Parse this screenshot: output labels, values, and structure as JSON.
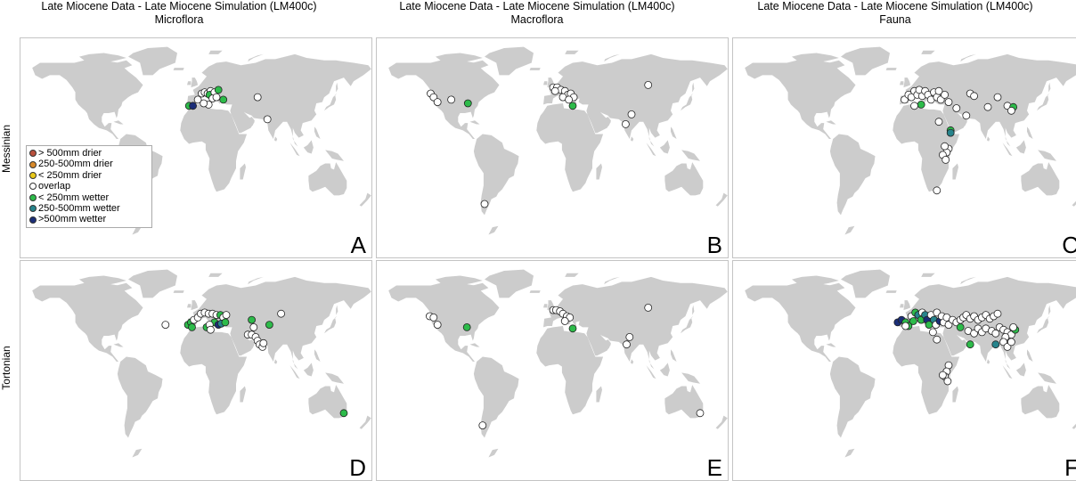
{
  "figure": {
    "columns": [
      {
        "title1": "Late Miocene Data - Late Miocene Simulation (LM400c)",
        "title2": "Microflora"
      },
      {
        "title1": "Late Miocene Data - Late Miocene Simulation (LM400c)",
        "title2": "Macroflora"
      },
      {
        "title1": "Late Miocene Data - Late Miocene Simulation (LM400c)",
        "title2": "Fauna"
      }
    ],
    "rows": [
      "Messinian",
      "Tortonian"
    ],
    "panel_letters": [
      "A",
      "B",
      "C",
      "D",
      "E",
      "F"
    ],
    "legend": [
      {
        "label": "> 500mm drier",
        "color": "#b8503c"
      },
      {
        "label": "250-500mm drier",
        "color": "#d8892a"
      },
      {
        "label": "< 250mm drier",
        "color": "#e8c81a"
      },
      {
        "label": "overlap",
        "color": "#ffffff"
      },
      {
        "label": "< 250mm wetter",
        "color": "#2dbb4a"
      },
      {
        "label": "250-500mm wetter",
        "color": "#27848c"
      },
      {
        "label": ">500mm wetter",
        "color": "#1b2e78"
      }
    ],
    "land_color": "#cccccc",
    "panels": [
      {
        "id": "A",
        "points": [
          {
            "lon": -8,
            "lat": 35,
            "cat": 4
          },
          {
            "lon": -4,
            "lat": 35,
            "cat": 6
          },
          {
            "lon": 1,
            "lat": 40,
            "cat": 3
          },
          {
            "lon": 5,
            "lat": 45,
            "cat": 3
          },
          {
            "lon": 8,
            "lat": 46,
            "cat": 3
          },
          {
            "lon": 11,
            "lat": 45,
            "cat": 3
          },
          {
            "lon": 14,
            "lat": 47,
            "cat": 3
          },
          {
            "lon": 13,
            "lat": 44,
            "cat": 4
          },
          {
            "lon": 18,
            "lat": 46,
            "cat": 3
          },
          {
            "lon": 22,
            "lat": 48,
            "cat": 4
          },
          {
            "lon": 16,
            "lat": 41,
            "cat": 3
          },
          {
            "lon": 27,
            "lat": 40,
            "cat": 4
          },
          {
            "lon": 12,
            "lat": 36,
            "cat": 3
          },
          {
            "lon": 7,
            "lat": 37,
            "cat": 3
          },
          {
            "lon": 20,
            "lat": 42,
            "cat": 3
          },
          {
            "lon": 62,
            "lat": 42,
            "cat": 3
          },
          {
            "lon": 72,
            "lat": 24,
            "cat": 3
          }
        ]
      },
      {
        "id": "B",
        "points": [
          {
            "lon": -125,
            "lat": 45,
            "cat": 3
          },
          {
            "lon": -122,
            "lat": 42,
            "cat": 3
          },
          {
            "lon": -118,
            "lat": 38,
            "cat": 3
          },
          {
            "lon": -104,
            "lat": 40,
            "cat": 3
          },
          {
            "lon": -87,
            "lat": 37,
            "cat": 4
          },
          {
            "lon": 0,
            "lat": 50,
            "cat": 3
          },
          {
            "lon": 4,
            "lat": 50,
            "cat": 3
          },
          {
            "lon": 8,
            "lat": 48,
            "cat": 3
          },
          {
            "lon": 12,
            "lat": 47,
            "cat": 3
          },
          {
            "lon": 2,
            "lat": 47,
            "cat": 3
          },
          {
            "lon": 15,
            "lat": 44,
            "cat": 3
          },
          {
            "lon": 18,
            "lat": 45,
            "cat": 3
          },
          {
            "lon": 21,
            "lat": 42,
            "cat": 3
          },
          {
            "lon": 10,
            "lat": 42,
            "cat": 3
          },
          {
            "lon": 16,
            "lat": 40,
            "cat": 3
          },
          {
            "lon": 20,
            "lat": 35,
            "cat": 4
          },
          {
            "lon": 97,
            "lat": 52,
            "cat": 3
          },
          {
            "lon": 80,
            "lat": 28,
            "cat": 3
          },
          {
            "lon": 74,
            "lat": 20,
            "cat": 3
          },
          {
            "lon": -70,
            "lat": -45,
            "cat": 3
          }
        ]
      },
      {
        "id": "C",
        "points": [
          {
            "lon": -5,
            "lat": 40,
            "cat": 3
          },
          {
            "lon": -1,
            "lat": 44,
            "cat": 3
          },
          {
            "lon": 2,
            "lat": 42,
            "cat": 3
          },
          {
            "lon": 5,
            "lat": 47,
            "cat": 3
          },
          {
            "lon": 8,
            "lat": 44,
            "cat": 3
          },
          {
            "lon": 10,
            "lat": 48,
            "cat": 3
          },
          {
            "lon": 13,
            "lat": 43,
            "cat": 3
          },
          {
            "lon": 16,
            "lat": 47,
            "cat": 3
          },
          {
            "lon": 19,
            "lat": 44,
            "cat": 3
          },
          {
            "lon": 22,
            "lat": 40,
            "cat": 3
          },
          {
            "lon": 25,
            "lat": 46,
            "cat": 3
          },
          {
            "lon": 28,
            "lat": 42,
            "cat": 3
          },
          {
            "lon": 32,
            "lat": 40,
            "cat": 3
          },
          {
            "lon": 30,
            "lat": 47,
            "cat": 3
          },
          {
            "lon": 36,
            "lat": 44,
            "cat": 3
          },
          {
            "lon": 12,
            "lat": 36,
            "cat": 4
          },
          {
            "lon": 5,
            "lat": 35,
            "cat": 3
          },
          {
            "lon": 40,
            "lat": 38,
            "cat": 3
          },
          {
            "lon": 48,
            "lat": 33,
            "cat": 3
          },
          {
            "lon": 42,
            "lat": 15,
            "cat": 4
          },
          {
            "lon": 42,
            "lat": 13,
            "cat": 5
          },
          {
            "lon": 62,
            "lat": 45,
            "cat": 3
          },
          {
            "lon": 66,
            "lat": 43,
            "cat": 3
          },
          {
            "lon": 58,
            "lat": 27,
            "cat": 3
          },
          {
            "lon": 80,
            "lat": 34,
            "cat": 3
          },
          {
            "lon": 90,
            "lat": 42,
            "cat": 3
          },
          {
            "lon": 100,
            "lat": 35,
            "cat": 3
          },
          {
            "lon": 106,
            "lat": 34,
            "cat": 4
          },
          {
            "lon": 104,
            "lat": 31,
            "cat": 3
          },
          {
            "lon": 40,
            "lat": 0,
            "cat": 3
          },
          {
            "lon": 38,
            "lat": -3,
            "cat": 3
          },
          {
            "lon": 36,
            "lat": 2,
            "cat": 3
          },
          {
            "lon": 34,
            "lat": -5,
            "cat": 3
          },
          {
            "lon": 37,
            "lat": -9,
            "cat": 3
          },
          {
            "lon": 28,
            "lat": -34,
            "cat": 3
          },
          {
            "lon": 30,
            "lat": 22,
            "cat": 3
          }
        ]
      },
      {
        "id": "D",
        "points": [
          {
            "lon": -9,
            "lat": 38,
            "cat": 4
          },
          {
            "lon": -6,
            "lat": 40,
            "cat": 4
          },
          {
            "lon": -3,
            "lat": 42,
            "cat": 3
          },
          {
            "lon": 1,
            "lat": 44,
            "cat": 3
          },
          {
            "lon": 4,
            "lat": 47,
            "cat": 3
          },
          {
            "lon": 8,
            "lat": 48,
            "cat": 3
          },
          {
            "lon": 12,
            "lat": 47,
            "cat": 3
          },
          {
            "lon": 16,
            "lat": 47,
            "cat": 3
          },
          {
            "lon": 20,
            "lat": 46,
            "cat": 3
          },
          {
            "lon": 24,
            "lat": 46,
            "cat": 4
          },
          {
            "lon": 27,
            "lat": 44,
            "cat": 3
          },
          {
            "lon": 18,
            "lat": 40,
            "cat": 4
          },
          {
            "lon": 22,
            "lat": 38,
            "cat": 6
          },
          {
            "lon": 25,
            "lat": 39,
            "cat": 5
          },
          {
            "lon": 29,
            "lat": 40,
            "cat": 4
          },
          {
            "lon": -5,
            "lat": 36,
            "cat": 4
          },
          {
            "lon": 10,
            "lat": 36,
            "cat": 4
          },
          {
            "lon": 13,
            "lat": 38,
            "cat": 3
          },
          {
            "lon": 14,
            "lat": 34,
            "cat": 3
          },
          {
            "lon": 30,
            "lat": 46,
            "cat": 3
          },
          {
            "lon": -32,
            "lat": 38,
            "cat": 3
          },
          {
            "lon": 56,
            "lat": 42,
            "cat": 4
          },
          {
            "lon": 58,
            "lat": 36,
            "cat": 3
          },
          {
            "lon": 52,
            "lat": 30,
            "cat": 3
          },
          {
            "lon": 56,
            "lat": 30,
            "cat": 3
          },
          {
            "lon": 60,
            "lat": 28,
            "cat": 3
          },
          {
            "lon": 62,
            "lat": 25,
            "cat": 3
          },
          {
            "lon": 64,
            "lat": 22,
            "cat": 3
          },
          {
            "lon": 67,
            "lat": 20,
            "cat": 3
          },
          {
            "lon": 68,
            "lat": 23,
            "cat": 3
          },
          {
            "lon": 74,
            "lat": 38,
            "cat": 4
          },
          {
            "lon": 86,
            "lat": 47,
            "cat": 3
          },
          {
            "lon": 150,
            "lat": -34,
            "cat": 4
          }
        ]
      },
      {
        "id": "E",
        "points": [
          {
            "lon": -126,
            "lat": 45,
            "cat": 3
          },
          {
            "lon": -122,
            "lat": 44,
            "cat": 3
          },
          {
            "lon": -118,
            "lat": 38,
            "cat": 3
          },
          {
            "lon": -88,
            "lat": 36,
            "cat": 4
          },
          {
            "lon": 0,
            "lat": 50,
            "cat": 3
          },
          {
            "lon": 3,
            "lat": 50,
            "cat": 3
          },
          {
            "lon": 7,
            "lat": 49,
            "cat": 3
          },
          {
            "lon": 10,
            "lat": 47,
            "cat": 3
          },
          {
            "lon": 14,
            "lat": 45,
            "cat": 3
          },
          {
            "lon": 17,
            "lat": 44,
            "cat": 3
          },
          {
            "lon": 20,
            "lat": 35,
            "cat": 4
          },
          {
            "lon": 12,
            "lat": 41,
            "cat": 3
          },
          {
            "lon": 97,
            "lat": 52,
            "cat": 3
          },
          {
            "lon": 78,
            "lat": 28,
            "cat": 3
          },
          {
            "lon": 75,
            "lat": 22,
            "cat": 3
          },
          {
            "lon": -72,
            "lat": -44,
            "cat": 3
          },
          {
            "lon": 150,
            "lat": -34,
            "cat": 3
          }
        ]
      },
      {
        "id": "F",
        "points": [
          {
            "lon": -12,
            "lat": 40,
            "cat": 6
          },
          {
            "lon": -8,
            "lat": 42,
            "cat": 6
          },
          {
            "lon": -4,
            "lat": 40,
            "cat": 4
          },
          {
            "lon": -1,
            "lat": 37,
            "cat": 4
          },
          {
            "lon": -4,
            "lat": 37,
            "cat": 3
          },
          {
            "lon": 2,
            "lat": 45,
            "cat": 3
          },
          {
            "lon": 4,
            "lat": 41,
            "cat": 4
          },
          {
            "lon": 6,
            "lat": 48,
            "cat": 4
          },
          {
            "lon": 9,
            "lat": 46,
            "cat": 5
          },
          {
            "lon": 12,
            "lat": 42,
            "cat": 4
          },
          {
            "lon": 13,
            "lat": 48,
            "cat": 3
          },
          {
            "lon": 16,
            "lat": 46,
            "cat": 5
          },
          {
            "lon": 18,
            "lat": 42,
            "cat": 6
          },
          {
            "lon": 20,
            "lat": 38,
            "cat": 4
          },
          {
            "lon": 22,
            "lat": 46,
            "cat": 3
          },
          {
            "lon": 25,
            "lat": 42,
            "cat": 5
          },
          {
            "lon": 27,
            "lat": 38,
            "cat": 3
          },
          {
            "lon": 28,
            "lat": 48,
            "cat": 3
          },
          {
            "lon": 31,
            "lat": 41,
            "cat": 6
          },
          {
            "lon": 33,
            "lat": 45,
            "cat": 3
          },
          {
            "lon": 35,
            "lat": 40,
            "cat": 3
          },
          {
            "lon": 38,
            "lat": 44,
            "cat": 3
          },
          {
            "lon": 40,
            "lat": 38,
            "cat": 3
          },
          {
            "lon": 44,
            "lat": 42,
            "cat": 3
          },
          {
            "lon": 48,
            "lat": 40,
            "cat": 3
          },
          {
            "lon": 52,
            "lat": 42,
            "cat": 3
          },
          {
            "lon": 55,
            "lat": 44,
            "cat": 3
          },
          {
            "lon": 58,
            "lat": 46,
            "cat": 3
          },
          {
            "lon": 62,
            "lat": 43,
            "cat": 3
          },
          {
            "lon": 66,
            "lat": 45,
            "cat": 3
          },
          {
            "lon": 70,
            "lat": 42,
            "cat": 3
          },
          {
            "lon": 74,
            "lat": 44,
            "cat": 3
          },
          {
            "lon": 78,
            "lat": 46,
            "cat": 3
          },
          {
            "lon": 82,
            "lat": 43,
            "cat": 3
          },
          {
            "lon": 86,
            "lat": 45,
            "cat": 3
          },
          {
            "lon": 90,
            "lat": 47,
            "cat": 3
          },
          {
            "lon": 52,
            "lat": 36,
            "cat": 4
          },
          {
            "lon": 60,
            "lat": 33,
            "cat": 3
          },
          {
            "lon": 66,
            "lat": 31,
            "cat": 3
          },
          {
            "lon": 70,
            "lat": 35,
            "cat": 3
          },
          {
            "lon": 74,
            "lat": 32,
            "cat": 3
          },
          {
            "lon": 78,
            "lat": 35,
            "cat": 3
          },
          {
            "lon": 84,
            "lat": 33,
            "cat": 3
          },
          {
            "lon": 88,
            "lat": 31,
            "cat": 3
          },
          {
            "lon": 92,
            "lat": 36,
            "cat": 3
          },
          {
            "lon": 96,
            "lat": 34,
            "cat": 3
          },
          {
            "lon": 100,
            "lat": 32,
            "cat": 3
          },
          {
            "lon": 104,
            "lat": 30,
            "cat": 3
          },
          {
            "lon": 108,
            "lat": 34,
            "cat": 4
          },
          {
            "lon": 106,
            "lat": 36,
            "cat": 3
          },
          {
            "lon": 98,
            "lat": 28,
            "cat": 3
          },
          {
            "lon": 96,
            "lat": 24,
            "cat": 3
          },
          {
            "lon": 100,
            "lat": 20,
            "cat": 3
          },
          {
            "lon": 104,
            "lat": 24,
            "cat": 3
          },
          {
            "lon": 88,
            "lat": 22,
            "cat": 5
          },
          {
            "lon": 62,
            "lat": 22,
            "cat": 4
          },
          {
            "lon": 40,
            "lat": 5,
            "cat": 3
          },
          {
            "lon": 38,
            "lat": 0,
            "cat": 3
          },
          {
            "lon": 36,
            "lat": -4,
            "cat": 3
          },
          {
            "lon": 34,
            "lat": -3,
            "cat": 3
          },
          {
            "lon": 39,
            "lat": -8,
            "cat": 3
          },
          {
            "lon": 28,
            "lat": 26,
            "cat": 3
          },
          {
            "lon": 24,
            "lat": 32,
            "cat": 3
          }
        ]
      }
    ]
  }
}
